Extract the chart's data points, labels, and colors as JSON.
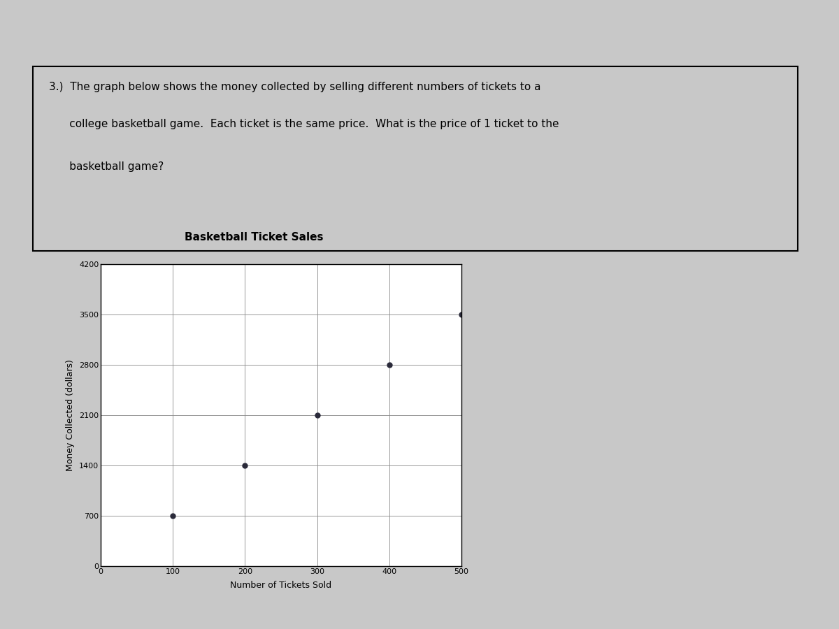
{
  "title": "Basketball Ticket Sales",
  "xlabel": "Number of Tickets Sold",
  "ylabel": "Money Collected (dollars)",
  "x_data": [
    100,
    200,
    300,
    400,
    500
  ],
  "y_data": [
    700,
    1400,
    2100,
    2800,
    3500
  ],
  "xlim": [
    0,
    500
  ],
  "ylim": [
    0,
    4200
  ],
  "x_ticks": [
    0,
    100,
    200,
    300,
    400,
    500
  ],
  "y_ticks": [
    0,
    700,
    1400,
    2100,
    2800,
    3500,
    4200
  ],
  "marker_color": "#2a2a3a",
  "marker_size": 5,
  "grid_color": "#888888",
  "page_bg": "#c8c8c8",
  "paper_bg": "#e8e8e4",
  "chart_bg": "#ffffff",
  "question_line1": "3.)  The graph below shows the money collected by selling different numbers of tickets to a",
  "question_line2": "      college basketball game.  Each ticket is the same price.  What is the price of 1 ticket to the",
  "question_line3": "      basketball game?",
  "title_fontsize": 11,
  "label_fontsize": 9,
  "tick_fontsize": 8,
  "question_fontsize": 11
}
